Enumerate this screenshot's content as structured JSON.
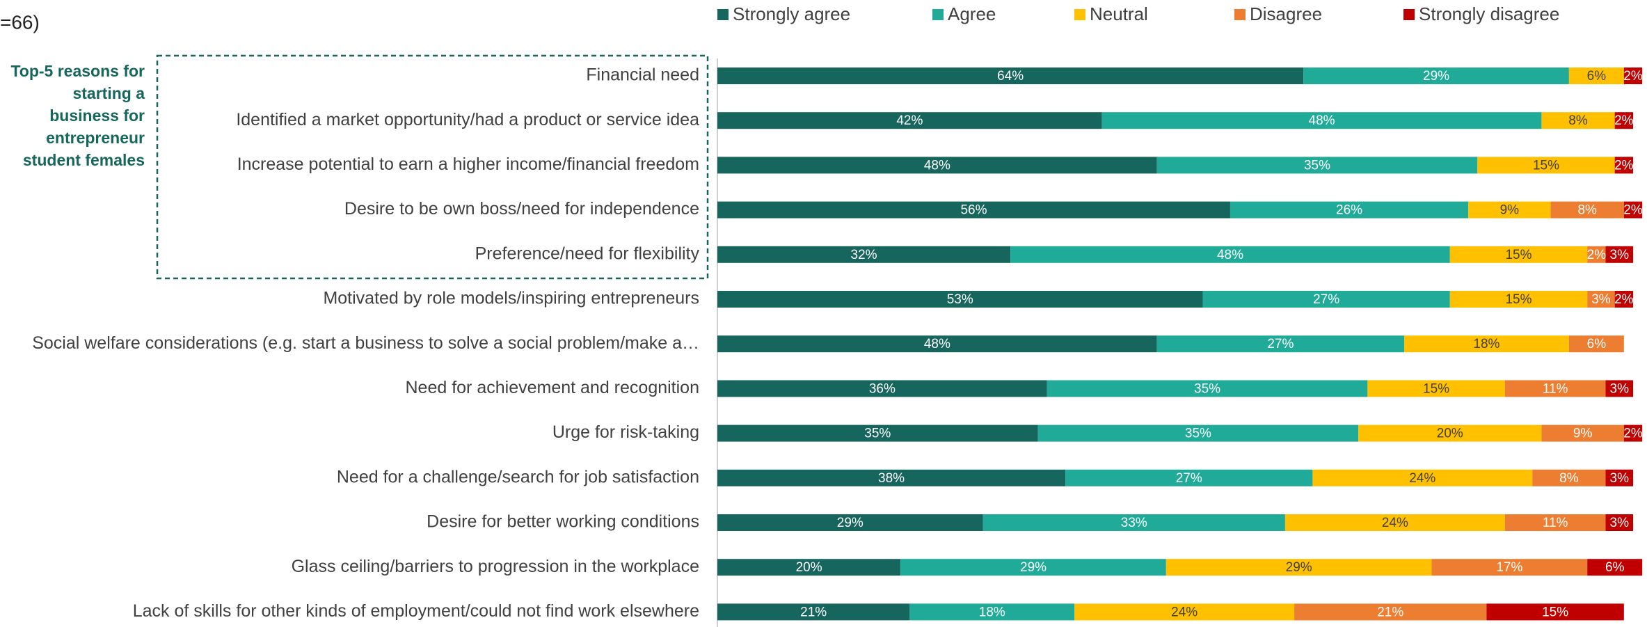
{
  "chart_data": {
    "type": "stacked_barh",
    "subtitle": "=66)",
    "annotation": "Top-5 reasons for starting a business for entrepreneur student females",
    "categories": [
      "Financial need",
      "Identified a market opportunity/had a product or service idea",
      "Increase potential to earn a higher income/financial freedom",
      "Desire to be own boss/need for independence",
      "Preference/need for flexibility",
      "Motivated by role models/inspiring entrepreneurs",
      "Social welfare considerations (e.g. start a business to solve a social problem/make a…",
      "Need for achievement and recognition",
      "Urge for risk-taking",
      "Need for a challenge/search for job satisfaction",
      "Desire for better working conditions",
      "Glass ceiling/barriers to progression in the workplace",
      "Lack of skills for other kinds of employment/could not find work elsewhere"
    ],
    "series": [
      {
        "name": "Strongly agree",
        "color": "#16665e",
        "label_color": "#ffffff",
        "values": [
          64,
          42,
          48,
          56,
          32,
          53,
          48,
          36,
          35,
          38,
          29,
          20,
          21
        ],
        "value_labels": [
          "64%",
          "42%",
          "48%",
          "56%",
          "32%",
          "53%",
          "48%",
          "36%",
          "35%",
          "38%",
          "29%",
          "20%",
          "21%"
        ]
      },
      {
        "name": "Agree",
        "color": "#20ab98",
        "label_color": "#ffffff",
        "values": [
          29,
          48,
          35,
          26,
          48,
          27,
          27,
          35,
          35,
          27,
          33,
          29,
          18
        ],
        "value_labels": [
          "29%",
          "48%",
          "35%",
          "26%",
          "48%",
          "27%",
          "27%",
          "35%",
          "35%",
          "27%",
          "33%",
          "29%",
          "18%"
        ]
      },
      {
        "name": "Neutral",
        "color": "#ffc000",
        "label_color": "#404040",
        "values": [
          6,
          8,
          15,
          9,
          15,
          15,
          18,
          15,
          20,
          24,
          24,
          29,
          24
        ],
        "value_labels": [
          "6%",
          "8%",
          "15%",
          "9%",
          "15%",
          "15%",
          "18%",
          "15%",
          "20%",
          "24%",
          "24%",
          "29%",
          "24%"
        ]
      },
      {
        "name": "Disagree",
        "color": "#ed7d31",
        "label_color": "#ffffff",
        "values": [
          null,
          null,
          null,
          8,
          2,
          3,
          6,
          11,
          9,
          8,
          11,
          17,
          21
        ],
        "value_labels": [
          null,
          null,
          null,
          "8%",
          "2%",
          "3%",
          "6%",
          "11%",
          "9%",
          "8%",
          "11%",
          "17%",
          "21%"
        ]
      },
      {
        "name": "Strongly disagree",
        "color": "#c00000",
        "label_color": "#ffffff",
        "values": [
          2,
          2,
          2,
          2,
          3,
          2,
          null,
          3,
          2,
          3,
          3,
          6,
          15
        ],
        "value_labels": [
          "2%",
          "2%",
          "2%",
          "2%",
          "3%",
          "2%",
          null,
          "3%",
          "2%",
          "3%",
          "3%",
          "6%",
          "15%"
        ]
      }
    ],
    "xlim": [
      0,
      100
    ]
  }
}
